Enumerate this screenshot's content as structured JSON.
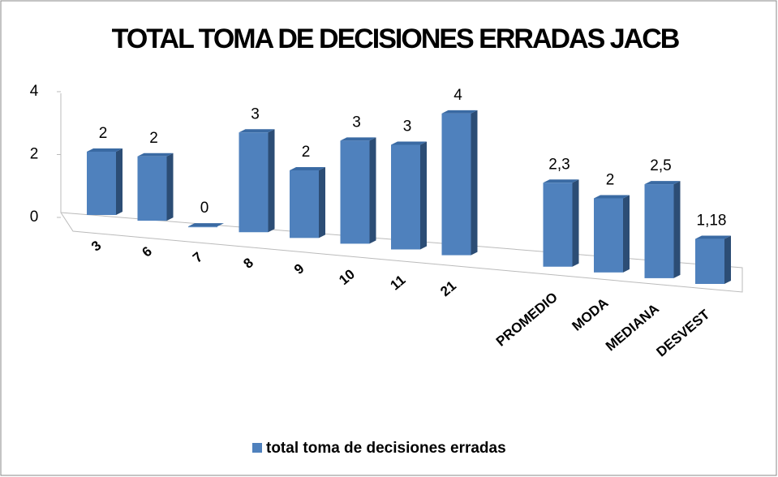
{
  "chart_data": {
    "type": "bar3d",
    "title": "TOTAL TOMA DE DECISIONES  ERRADAS  JACB",
    "categories": [
      "3",
      "6",
      "7",
      "8",
      "9",
      "10",
      "11",
      "21",
      null,
      "PROMEDIO",
      "MODA",
      "MEDIANA",
      "DESVEST"
    ],
    "series": [
      {
        "name": "total toma de decisiones erradas",
        "color": "#4f81bd",
        "values": [
          2,
          2,
          0,
          3,
          2,
          3,
          3,
          4,
          null,
          2.3,
          2,
          2.5,
          1.18
        ],
        "value_labels": [
          "2",
          "2",
          "0",
          "3",
          "2",
          "3",
          "3",
          "4",
          null,
          "2,3",
          "2",
          "2,5",
          "1,18"
        ]
      }
    ],
    "ylim": [
      0,
      4
    ],
    "yticks": [
      0,
      2,
      4
    ],
    "legend": "bottom"
  }
}
